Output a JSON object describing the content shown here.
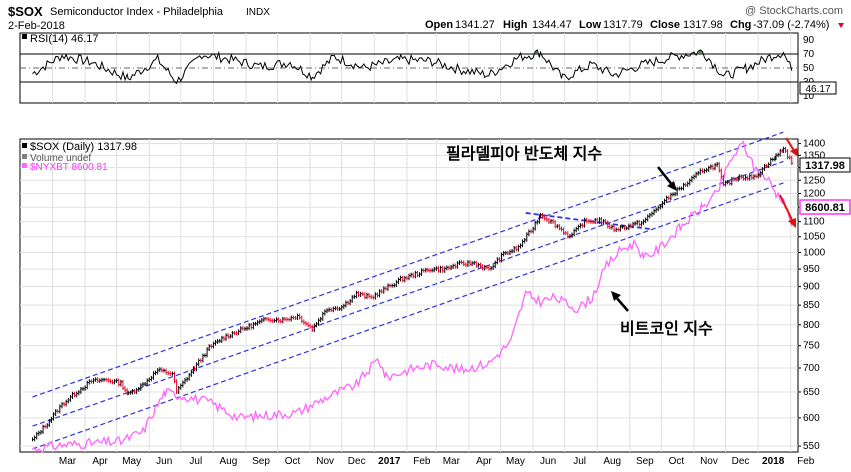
{
  "header": {
    "symbol": "$SOX",
    "name": "Semiconductor Index - Philadelphia",
    "exchange": "INDX",
    "date": "2-Feb-2018",
    "watermark": "@ StockCharts.com",
    "ohlc": {
      "open_label": "Open",
      "open": "1341.27",
      "high_label": "High",
      "high": "1344.47",
      "low_label": "Low",
      "low": "1317.79",
      "close_label": "Close",
      "close": "1317.98",
      "chg_label": "Chg",
      "chg": "-37.09 (-2.74%)"
    }
  },
  "colors": {
    "price_up": "#000000",
    "price_down": "#e8002a",
    "bitcoin_line": "#ff66ff",
    "channel_line": "#3333dd",
    "rsi_line": "#000000",
    "rsi_overbought_fill": "#2e7d32",
    "annotation_arrow_red": "#e01010",
    "annotation_arrow_black": "#000000",
    "grid": "#e0e0e0"
  },
  "rsi_panel": {
    "legend": "RSI(14) 46.17",
    "current_value": "46.17",
    "y_ticks": [
      "90",
      "70",
      "50",
      "30",
      "10"
    ],
    "levels": {
      "overbought": 70,
      "oversold": 30,
      "mid": 50
    },
    "ylim": [
      0,
      100
    ]
  },
  "price_panel": {
    "legend_items": [
      {
        "label": "$SOX (Daily) 1317.98",
        "color": "#000000"
      },
      {
        "label": "Volume undef",
        "color": "#808080"
      },
      {
        "label": "$NYXBT 8600.81",
        "color": "#ff66ff"
      }
    ],
    "sox_badge": "1317.98",
    "btc_badge": "8600.81",
    "annotations": {
      "sox_label": "필라델피아 반도체 지수",
      "bitcoin_label": "비트코인 지수"
    }
  },
  "x_axis": {
    "labels": [
      "Mar",
      "Apr",
      "May",
      "Jun",
      "Jul",
      "Aug",
      "Sep",
      "Oct",
      "Nov",
      "Dec",
      "2017",
      "Feb",
      "Mar",
      "Apr",
      "May",
      "Jun",
      "Jul",
      "Aug",
      "Sep",
      "Oct",
      "Nov",
      "Dec",
      "2018",
      "Feb"
    ],
    "bold_labels": [
      "2017",
      "2018"
    ]
  },
  "chart_data": {
    "type": "line",
    "title": "$SOX Semiconductor Index - Philadelphia INDX",
    "x_range": [
      "2016-02-01",
      "2018-02-02"
    ],
    "y_axis_price": {
      "ticks": [
        550,
        600,
        650,
        700,
        750,
        800,
        850,
        900,
        950,
        1000,
        1050,
        1100,
        1150,
        1200,
        1250,
        1300,
        1350,
        1400
      ],
      "scale": "log",
      "ylim": [
        540,
        1420
      ]
    },
    "series": [
      {
        "name": "$SOX (Daily) 1317.98",
        "style": "ohlc-bars",
        "points": [
          [
            "2016-02-11",
            560
          ],
          [
            "2016-02-25",
            590
          ],
          [
            "2016-03-10",
            625
          ],
          [
            "2016-03-24",
            650
          ],
          [
            "2016-04-07",
            672
          ],
          [
            "2016-04-21",
            675
          ],
          [
            "2016-05-05",
            668
          ],
          [
            "2016-05-12",
            645
          ],
          [
            "2016-05-26",
            665
          ],
          [
            "2016-06-09",
            695
          ],
          [
            "2016-06-23",
            688
          ],
          [
            "2016-06-27",
            650
          ],
          [
            "2016-07-14",
            700
          ],
          [
            "2016-07-28",
            745
          ],
          [
            "2016-08-11",
            770
          ],
          [
            "2016-08-25",
            785
          ],
          [
            "2016-09-08",
            800
          ],
          [
            "2016-09-22",
            815
          ],
          [
            "2016-10-06",
            812
          ],
          [
            "2016-10-20",
            822
          ],
          [
            "2016-11-03",
            790
          ],
          [
            "2016-11-17",
            840
          ],
          [
            "2016-12-01",
            845
          ],
          [
            "2016-12-15",
            880
          ],
          [
            "2016-12-29",
            870
          ],
          [
            "2017-01-12",
            895
          ],
          [
            "2017-01-26",
            920
          ],
          [
            "2017-02-09",
            935
          ],
          [
            "2017-02-23",
            950
          ],
          [
            "2017-03-09",
            950
          ],
          [
            "2017-03-23",
            965
          ],
          [
            "2017-04-06",
            968
          ],
          [
            "2017-04-20",
            948
          ],
          [
            "2017-05-04",
            995
          ],
          [
            "2017-05-18",
            1015
          ],
          [
            "2017-06-01",
            1080
          ],
          [
            "2017-06-08",
            1125
          ],
          [
            "2017-06-22",
            1090
          ],
          [
            "2017-07-06",
            1050
          ],
          [
            "2017-07-20",
            1100
          ],
          [
            "2017-08-03",
            1105
          ],
          [
            "2017-08-17",
            1075
          ],
          [
            "2017-08-31",
            1085
          ],
          [
            "2017-09-14",
            1100
          ],
          [
            "2017-09-28",
            1150
          ],
          [
            "2017-10-12",
            1200
          ],
          [
            "2017-10-26",
            1240
          ],
          [
            "2017-11-09",
            1290
          ],
          [
            "2017-11-23",
            1310
          ],
          [
            "2017-11-29",
            1230
          ],
          [
            "2017-12-14",
            1265
          ],
          [
            "2017-12-28",
            1260
          ],
          [
            "2018-01-11",
            1320
          ],
          [
            "2018-01-18",
            1345
          ],
          [
            "2018-01-25",
            1380
          ],
          [
            "2018-02-02",
            1318
          ]
        ]
      },
      {
        "name": "$NYXBT 8600.81",
        "style": "line",
        "points": [
          [
            "2016-02-11",
            545
          ],
          [
            "2016-03-10",
            552
          ],
          [
            "2016-04-07",
            555
          ],
          [
            "2016-05-05",
            558
          ],
          [
            "2016-05-26",
            575
          ],
          [
            "2016-06-16",
            650
          ],
          [
            "2016-07-07",
            640
          ],
          [
            "2016-07-28",
            630
          ],
          [
            "2016-08-25",
            600
          ],
          [
            "2016-09-22",
            605
          ],
          [
            "2016-10-20",
            610
          ],
          [
            "2016-11-17",
            640
          ],
          [
            "2016-12-15",
            665
          ],
          [
            "2017-01-05",
            720
          ],
          [
            "2017-01-12",
            680
          ],
          [
            "2017-02-09",
            700
          ],
          [
            "2017-03-02",
            710
          ],
          [
            "2017-03-23",
            695
          ],
          [
            "2017-04-20",
            710
          ],
          [
            "2017-05-11",
            760
          ],
          [
            "2017-05-25",
            880
          ],
          [
            "2017-06-08",
            860
          ],
          [
            "2017-06-22",
            870
          ],
          [
            "2017-07-13",
            840
          ],
          [
            "2017-07-27",
            870
          ],
          [
            "2017-08-10",
            960
          ],
          [
            "2017-08-24",
            1010
          ],
          [
            "2017-09-07",
            1030
          ],
          [
            "2017-09-14",
            980
          ],
          [
            "2017-09-28",
            1010
          ],
          [
            "2017-10-19",
            1080
          ],
          [
            "2017-11-09",
            1150
          ],
          [
            "2017-11-23",
            1200
          ],
          [
            "2017-12-07",
            1340
          ],
          [
            "2017-12-18",
            1400
          ],
          [
            "2017-12-28",
            1300
          ],
          [
            "2018-01-11",
            1250
          ],
          [
            "2018-01-18",
            1200
          ],
          [
            "2018-01-25",
            1180
          ],
          [
            "2018-02-02",
            1085
          ]
        ]
      },
      {
        "name": "RSI(14)",
        "style": "line",
        "panel": "rsi",
        "points": [
          [
            "2016-02-11",
            42
          ],
          [
            "2016-03-10",
            68
          ],
          [
            "2016-04-07",
            58
          ],
          [
            "2016-05-12",
            35
          ],
          [
            "2016-06-09",
            62
          ],
          [
            "2016-06-27",
            30
          ],
          [
            "2016-07-21",
            70
          ],
          [
            "2016-08-18",
            62
          ],
          [
            "2016-09-15",
            52
          ],
          [
            "2016-10-13",
            58
          ],
          [
            "2016-11-03",
            38
          ],
          [
            "2016-11-24",
            66
          ],
          [
            "2016-12-22",
            50
          ],
          [
            "2017-01-26",
            62
          ],
          [
            "2017-02-23",
            60
          ],
          [
            "2017-03-23",
            48
          ],
          [
            "2017-04-20",
            40
          ],
          [
            "2017-05-18",
            65
          ],
          [
            "2017-06-08",
            72
          ],
          [
            "2017-06-29",
            35
          ],
          [
            "2017-07-27",
            55
          ],
          [
            "2017-08-17",
            40
          ],
          [
            "2017-09-14",
            55
          ],
          [
            "2017-10-12",
            66
          ],
          [
            "2017-11-09",
            74
          ],
          [
            "2017-11-30",
            38
          ],
          [
            "2017-12-21",
            50
          ],
          [
            "2018-01-18",
            70
          ],
          [
            "2018-01-25",
            72
          ],
          [
            "2018-02-02",
            46
          ]
        ]
      }
    ],
    "trend_channel": [
      {
        "name": "upper",
        "from": [
          "2016-02-11",
          640
        ],
        "to": [
          "2018-01-25",
          1450
        ]
      },
      {
        "name": "middle",
        "from": [
          "2016-02-11",
          585
        ],
        "to": [
          "2018-01-25",
          1325
        ]
      },
      {
        "name": "lower",
        "from": [
          "2016-02-11",
          545
        ],
        "to": [
          "2018-01-25",
          1240
        ]
      },
      {
        "name": "pullback",
        "from": [
          "2017-05-25",
          1130
        ],
        "to": [
          "2017-09-21",
          1075
        ]
      }
    ]
  }
}
